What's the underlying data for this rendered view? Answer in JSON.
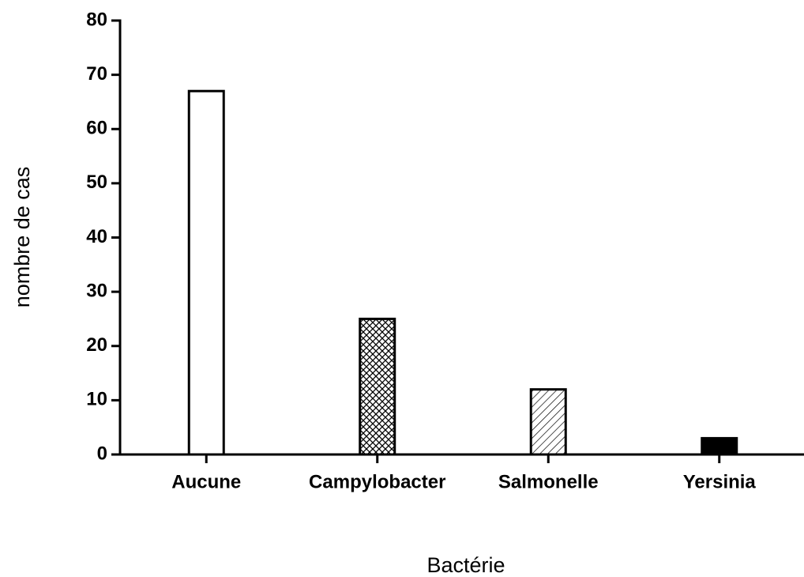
{
  "chart_data": {
    "type": "bar",
    "x_label": "Bactérie",
    "y_label": "nombre de cas",
    "categories": [
      "Aucune",
      "Campylobacter",
      "Salmonelle",
      "Yersinia"
    ],
    "values": [
      67,
      25,
      12,
      3
    ],
    "patterns": [
      "none",
      "crosshatch",
      "diagonal",
      "solid"
    ],
    "color": "#000000",
    "ylim": [
      0,
      80
    ],
    "yticks": [
      0,
      10,
      20,
      30,
      40,
      50,
      60,
      70,
      80
    ],
    "grid": false
  }
}
